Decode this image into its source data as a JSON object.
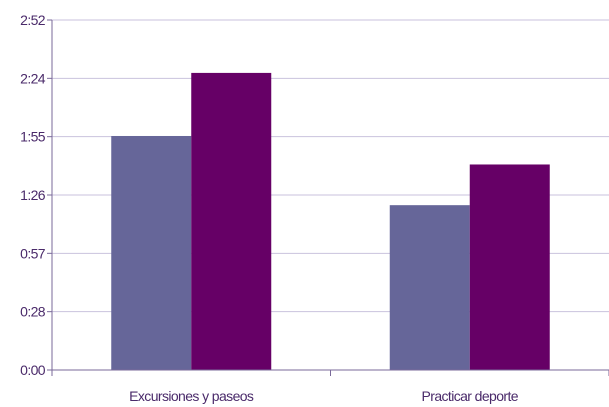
{
  "chart_data": {
    "type": "bar",
    "categories": [
      "Excursiones y paseos",
      "Practicar deporte"
    ],
    "series": [
      {
        "values": [
          115,
          81
        ],
        "color": "#666699"
      },
      {
        "values": [
          146,
          101
        ],
        "color": "#660066"
      }
    ],
    "value_unit": "minutes",
    "y_tick_labels": [
      "0:00",
      "0:28",
      "0:57",
      "1:26",
      "1:55",
      "2:24",
      "2:52"
    ],
    "ylim": [
      0,
      172
    ],
    "grid": true,
    "legend": "none",
    "gridline_color": "#c9c2dd",
    "axis_color": "#7a6a9a"
  }
}
